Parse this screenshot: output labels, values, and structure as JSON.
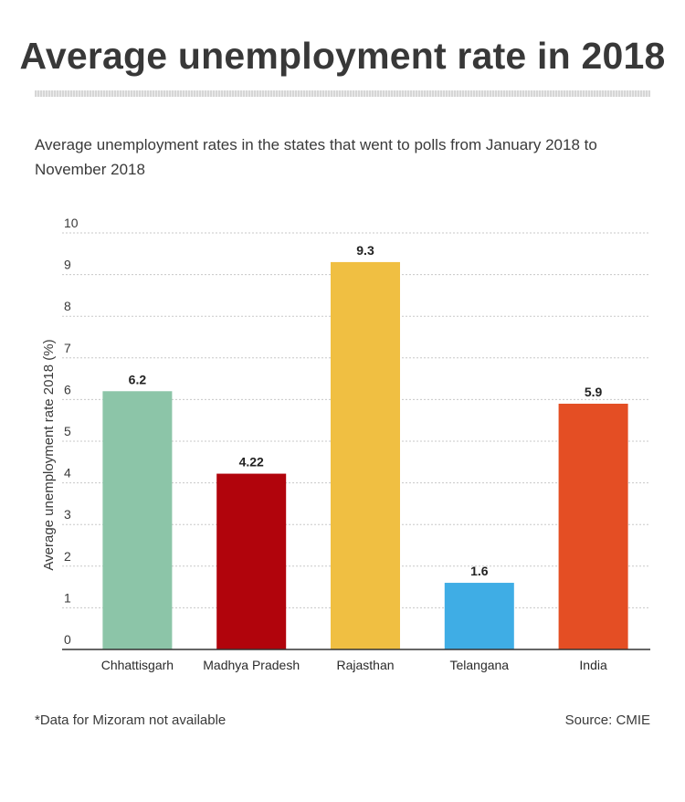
{
  "title": "Average unemployment rate in 2018",
  "subtitle": "Average unemployment rates in the states that went to polls from January 2018 to November 2018",
  "footnote": "*Data for Mizoram not available",
  "source": "Source: CMIE",
  "chart_data": {
    "type": "bar",
    "categories": [
      "Chhattisgarh",
      "Madhya Pradesh",
      "Rajasthan",
      "Telangana",
      "India"
    ],
    "values": [
      6.2,
      4.22,
      9.3,
      1.6,
      5.9
    ],
    "value_labels": [
      "6.2",
      "4.22",
      "9.3",
      "1.6",
      "5.9"
    ],
    "colors": [
      "#8cc5a8",
      "#b1040c",
      "#f0bf42",
      "#3fade5",
      "#e44e24"
    ],
    "ylabel": "Average unemployment rate 2018 (%)",
    "xlabel": "",
    "ylim": [
      0,
      10
    ],
    "yticks": [
      0,
      1,
      2,
      3,
      4,
      5,
      6,
      7,
      8,
      9,
      10
    ],
    "grid": true
  }
}
